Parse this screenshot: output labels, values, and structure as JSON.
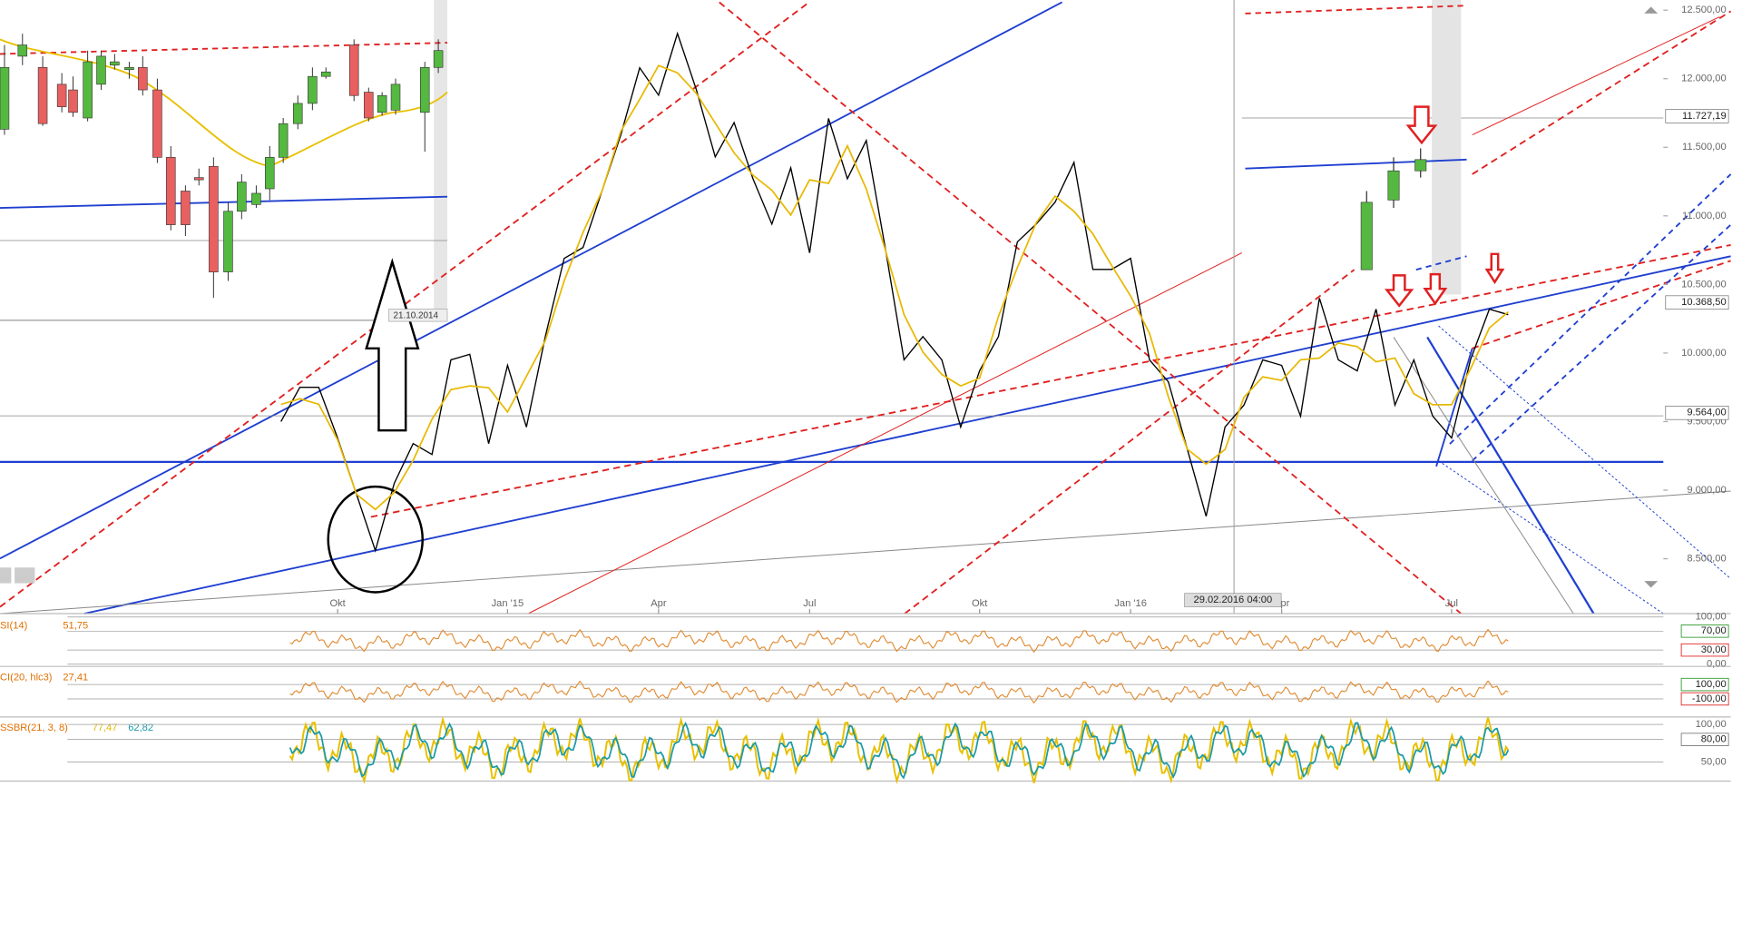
{
  "chart_data": {
    "type": "line",
    "color": "#000000",
    "ma_color": "#e8b800",
    "categories": [
      null,
      null,
      null,
      "Okt",
      null,
      null,
      null,
      null,
      null,
      null,
      null,
      null,
      "Jan '15",
      null,
      null,
      null,
      null,
      null,
      null,
      null,
      "Apr",
      null,
      null,
      null,
      null,
      null,
      null,
      null,
      "Jul",
      null,
      null,
      null,
      null,
      null,
      null,
      null,
      null,
      "Okt",
      null,
      null,
      null,
      null,
      null,
      null,
      null,
      "Jan '16",
      null,
      null,
      null,
      null,
      null,
      null,
      null,
      "Apr",
      null,
      null,
      null,
      null,
      null,
      null,
      null,
      null,
      "Jul",
      null,
      null,
      null
    ],
    "values": [
      9500,
      9750,
      9750,
      9380,
      8970,
      8560,
      9050,
      9340,
      9260,
      9950,
      9990,
      9340,
      9910,
      9460,
      10120,
      10690,
      10770,
      11180,
      11590,
      12080,
      11880,
      12330,
      11920,
      11430,
      11680,
      11270,
      10940,
      11350,
      10730,
      11710,
      11270,
      11550,
      10770,
      9950,
      10120,
      9950,
      9460,
      9870,
      10120,
      10810,
      10940,
      11100,
      11390,
      10610,
      10610,
      10690,
      9950,
      9790,
      9300,
      8810,
      9460,
      9620,
      9950,
      9910,
      9540,
      10400,
      9950,
      9870,
      10320,
      9620,
      9950,
      9540,
      9380,
      9950,
      10320,
      10280
    ],
    "ylim": [
      8100,
      12574
    ],
    "yticks": [
      {
        "value": 12500,
        "label": "12.500,00"
      },
      {
        "value": 12000,
        "label": "12.000,00"
      },
      {
        "value": 11500,
        "label": "11.500,00"
      },
      {
        "value": 11000,
        "label": "11.000,00"
      },
      {
        "value": 10500,
        "label": "10.500,00"
      },
      {
        "value": 10000,
        "label": "10.000,00"
      },
      {
        "value": 9500,
        "label": "9.500,00"
      },
      {
        "value": 9000,
        "label": "9.000,00"
      },
      {
        "value": 8500,
        "label": "8.500,00"
      }
    ],
    "price_markers": [
      {
        "value": 11727.19,
        "label": "11.727,19"
      },
      {
        "value": 10368.5,
        "label": "10.368,50"
      },
      {
        "value": 9564,
        "label": "9.564,00"
      }
    ],
    "crosshair_label": "29.02.2016 04:00",
    "inset_label": "21.10.2014",
    "indicators": [
      {
        "name": "SI(14)",
        "readouts": [
          "51,75"
        ],
        "readout_colors": [
          "#e07000"
        ],
        "color": "#e08a30",
        "ylim": [
          0,
          100
        ],
        "yticks": [
          {
            "value": 100,
            "label": "100,00"
          },
          {
            "value": 70,
            "label": "70,00"
          },
          {
            "value": 30,
            "label": "30,00"
          },
          {
            "value": 0,
            "label": "0,00"
          }
        ]
      },
      {
        "name": "CI(20, hlc3)",
        "readouts": [
          "27,41"
        ],
        "readout_colors": [
          "#e07000"
        ],
        "color": "#e08a30",
        "ylim": [
          -320,
          320
        ],
        "yticks": [
          {
            "value": 100,
            "label": "100,00"
          },
          {
            "value": -100,
            "label": "-100,00"
          }
        ]
      },
      {
        "name": "SSBR(21, 3, 8)",
        "readouts": [
          "77,47",
          "62,82"
        ],
        "readout_colors": [
          "#e8b800",
          "#1a9aa8"
        ],
        "color": "#e8c000",
        "ylim": [
          26,
          107
        ],
        "yticks": [
          {
            "value": 100,
            "label": "100,00"
          },
          {
            "value": 80,
            "label": "80,00"
          },
          {
            "value": 50,
            "label": "50,00"
          }
        ]
      }
    ]
  }
}
